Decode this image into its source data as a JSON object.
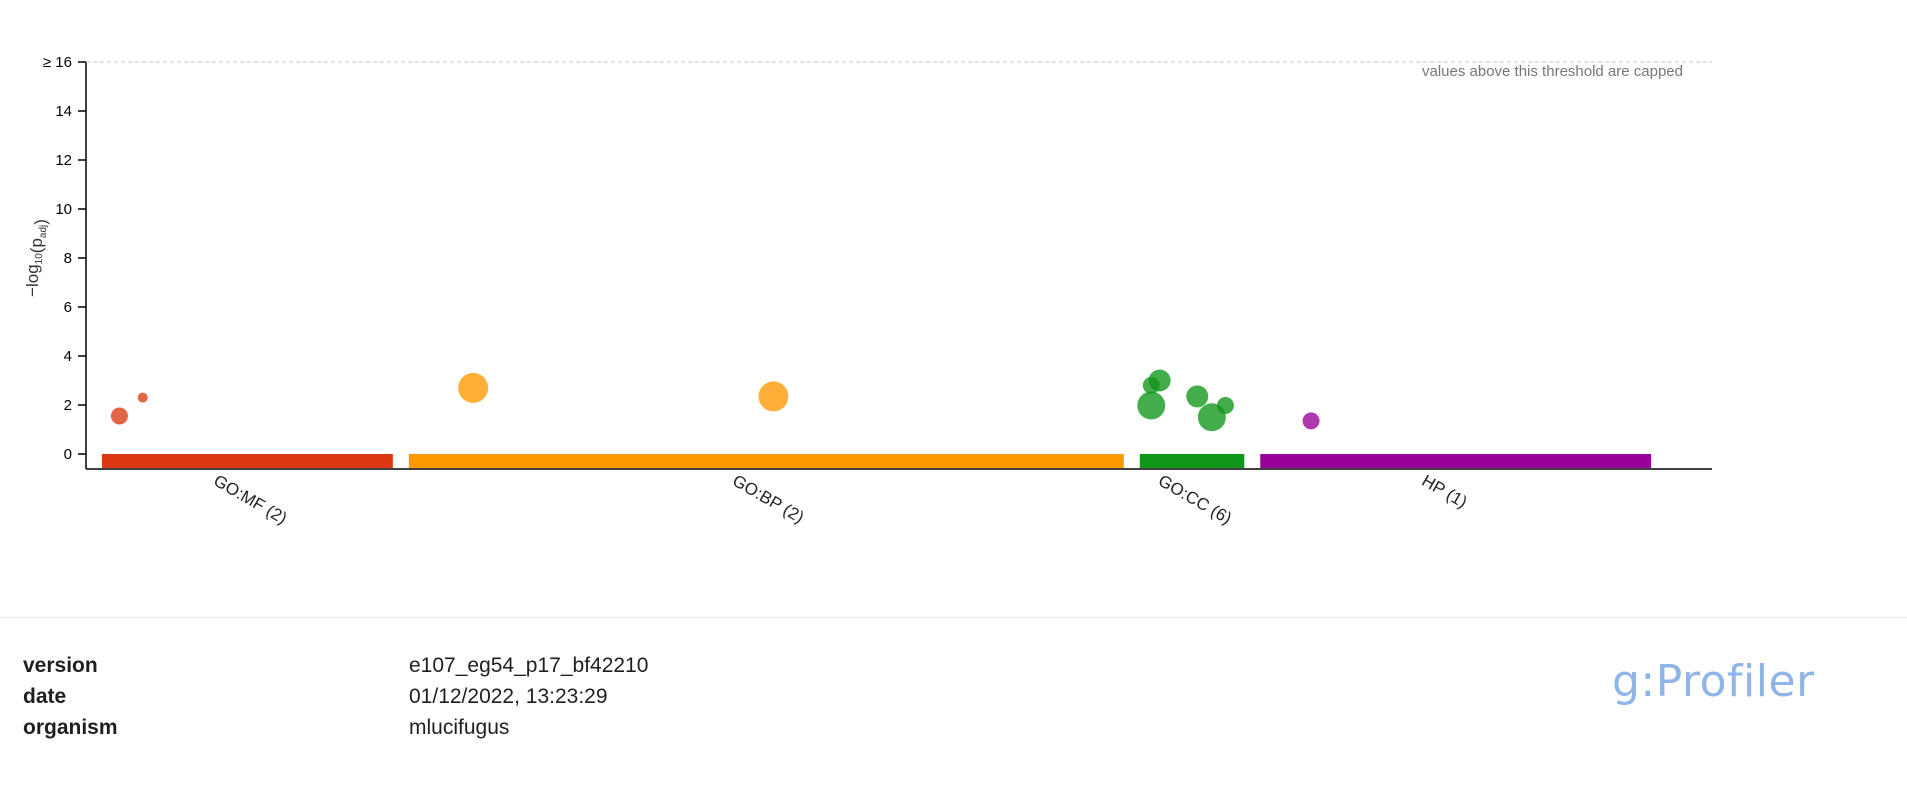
{
  "chart_data": {
    "type": "scatter",
    "ylabel_prefix": "−log",
    "ylabel_sub": "10",
    "ylabel_mid": "(p",
    "ylabel_sub2": "adj",
    "ylabel_suffix": ")",
    "ylim": [
      0,
      16
    ],
    "yticks": [
      "0",
      "2",
      "4",
      "6",
      "8",
      "10",
      "12",
      "14",
      "≥ 16"
    ],
    "threshold_note": "values above this threshold are capped",
    "grid": false,
    "sources": [
      {
        "name": "GO:MF (2)",
        "color": "#dc3912"
      },
      {
        "name": "GO:BP (2)",
        "color": "#ff9900"
      },
      {
        "name": "GO:CC (6)",
        "color": "#109618"
      },
      {
        "name": "HP (1)",
        "color": "#990099"
      }
    ],
    "points": [
      {
        "source": 0,
        "pos": 0.06,
        "y": 1.55,
        "size": "medium"
      },
      {
        "source": 0,
        "pos": 0.14,
        "y": 2.3,
        "size": "small"
      },
      {
        "source": 1,
        "pos": 0.09,
        "y": 2.7,
        "size": "large"
      },
      {
        "source": 1,
        "pos": 0.51,
        "y": 2.35,
        "size": "large"
      },
      {
        "source": 2,
        "pos": 0.11,
        "y": 2.8,
        "size": "medium"
      },
      {
        "source": 2,
        "pos": 0.19,
        "y": 3.0,
        "size": "medium_large"
      },
      {
        "source": 2,
        "pos": 0.11,
        "y": 1.98,
        "size": "xlarge"
      },
      {
        "source": 2,
        "pos": 0.55,
        "y": 2.35,
        "size": "medium_large"
      },
      {
        "source": 2,
        "pos": 0.82,
        "y": 1.98,
        "size": "medium"
      },
      {
        "source": 2,
        "pos": 0.69,
        "y": 1.5,
        "size": "xlarge"
      },
      {
        "source": 3,
        "pos": 0.13,
        "y": 1.35,
        "size": "medium"
      }
    ]
  },
  "footer": {
    "version_label": "version",
    "version_value": "e107_eg54_p17_bf42210",
    "date_label": "date",
    "date_value": "01/12/2022, 13:23:29",
    "organism_label": "organism",
    "organism_value": "mlucifugus",
    "brand": "g:Profiler"
  }
}
